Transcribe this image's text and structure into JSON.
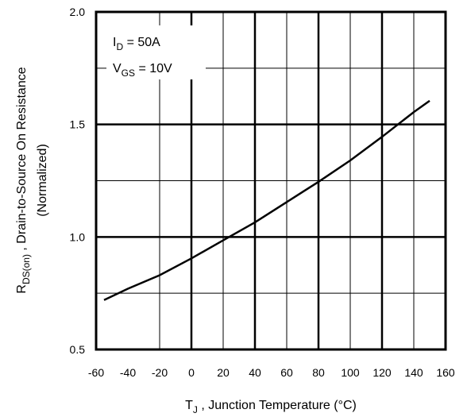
{
  "chart_data": {
    "type": "line",
    "xlabel_main": "T",
    "xlabel_sub": "J",
    "xlabel_rest": " , Junction Temperature (°C)",
    "ylabel_line1_main": "R",
    "ylabel_line1_sub": "DS(on)",
    "ylabel_line1_rest": " , Drain-to-Source On Resistance",
    "ylabel_line2": "(Normalized)",
    "xlim": [
      -60,
      160
    ],
    "ylim": [
      0.5,
      2.0
    ],
    "x_ticks": [
      "-60",
      "-40",
      "-20",
      "0",
      "20",
      "40",
      "60",
      "80",
      "100",
      "120",
      "140",
      "160"
    ],
    "y_ticks": [
      "0.5",
      "1.0",
      "1.5",
      "2.0"
    ],
    "grid": true,
    "annotations": {
      "id_main": "I",
      "id_sub": "D",
      "id_rest": " = 50A",
      "vgs_main": "V",
      "vgs_sub": "GS",
      "vgs_rest": " = 10V"
    },
    "series": [
      {
        "x": [
          -55,
          -40,
          -20,
          0,
          20,
          40,
          60,
          80,
          100,
          120,
          140,
          150
        ],
        "y": [
          0.72,
          0.77,
          0.83,
          0.905,
          0.985,
          1.065,
          1.155,
          1.245,
          1.34,
          1.445,
          1.555,
          1.605
        ]
      }
    ]
  }
}
